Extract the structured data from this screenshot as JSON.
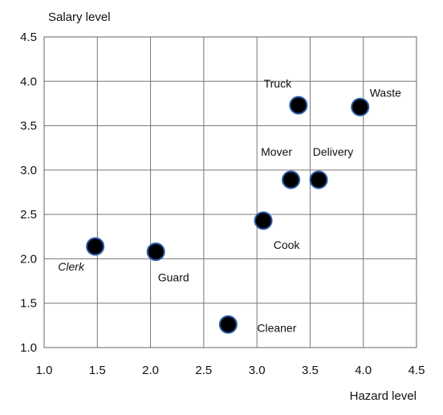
{
  "chart_data": {
    "type": "scatter",
    "title": "",
    "xlabel": "Hazard level",
    "ylabel": "Salary level",
    "xlim": [
      1.0,
      4.5
    ],
    "ylim": [
      1.0,
      4.5
    ],
    "x_ticks": [
      "1.0",
      "1.5",
      "2.0",
      "2.5",
      "3.0",
      "3.5",
      "4.0",
      "4.5"
    ],
    "y_ticks": [
      "1.0",
      "1.5",
      "2.0",
      "2.5",
      "3.0",
      "3.5",
      "4.0",
      "4.5"
    ],
    "grid": true,
    "legend": "none",
    "points": [
      {
        "label": "Clerk",
        "x": 1.48,
        "y": 2.14,
        "italic": true
      },
      {
        "label": "Guard",
        "x": 2.05,
        "y": 2.08
      },
      {
        "label": "Cleaner",
        "x": 2.73,
        "y": 1.26
      },
      {
        "label": "Cook",
        "x": 3.06,
        "y": 2.43
      },
      {
        "label": "Mover",
        "x": 3.32,
        "y": 2.89
      },
      {
        "label": "Delivery",
        "x": 3.58,
        "y": 2.89
      },
      {
        "label": "Truck",
        "x": 3.39,
        "y": 3.73
      },
      {
        "label": "Waste",
        "x": 3.97,
        "y": 3.71
      }
    ],
    "colors": {
      "marker_fill": "#000000",
      "marker_edge": "#2a5aa8",
      "grid": "#777777"
    }
  }
}
